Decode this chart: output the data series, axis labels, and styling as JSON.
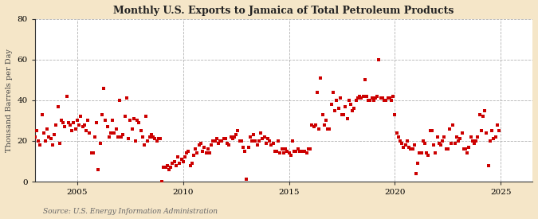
{
  "title": "Monthly U.S. Exports to Jamaica of Total Petroleum Products",
  "ylabel": "Thousand Barrels per Day",
  "source": "Source: U.S. Energy Information Administration",
  "outer_bg": "#f5e6c8",
  "plot_bg": "#ffffff",
  "marker_color": "#cc0000",
  "xlim": [
    2003.0,
    2026.5
  ],
  "ylim": [
    0,
    80
  ],
  "yticks": [
    0,
    20,
    40,
    60,
    80
  ],
  "xticks": [
    2005,
    2010,
    2015,
    2020,
    2025
  ],
  "marker_size": 7,
  "data": {
    "2003-01": 22,
    "2003-02": 25,
    "2003-03": 20,
    "2003-04": 18,
    "2003-05": 33,
    "2003-06": 24,
    "2003-07": 20,
    "2003-08": 26,
    "2003-09": 22,
    "2003-10": 21,
    "2003-11": 18,
    "2003-12": 23,
    "2004-01": 28,
    "2004-02": 37,
    "2004-03": 19,
    "2004-04": 30,
    "2004-05": 29,
    "2004-06": 27,
    "2004-07": 42,
    "2004-08": 29,
    "2004-09": 28,
    "2004-10": 25,
    "2004-11": 29,
    "2004-12": 26,
    "2005-01": 30,
    "2005-02": 28,
    "2005-03": 32,
    "2005-04": 27,
    "2005-05": 28,
    "2005-06": 25,
    "2005-07": 30,
    "2005-08": 24,
    "2005-09": 14,
    "2005-10": 14,
    "2005-11": 22,
    "2005-12": 29,
    "2006-01": 6,
    "2006-02": 19,
    "2006-03": 33,
    "2006-04": 46,
    "2006-05": 30,
    "2006-06": 27,
    "2006-07": 22,
    "2006-08": 24,
    "2006-09": 30,
    "2006-10": 24,
    "2006-11": 26,
    "2006-12": 22,
    "2007-01": 40,
    "2007-02": 22,
    "2007-03": 23,
    "2007-04": 32,
    "2007-05": 41,
    "2007-06": 21,
    "2007-07": 30,
    "2007-08": 26,
    "2007-09": 31,
    "2007-10": 20,
    "2007-11": 30,
    "2007-12": 29,
    "2008-01": 25,
    "2008-02": 22,
    "2008-03": 18,
    "2008-04": 32,
    "2008-05": 20,
    "2008-06": 22,
    "2008-07": 23,
    "2008-08": 22,
    "2008-09": 21,
    "2008-10": 20,
    "2008-11": 21,
    "2008-12": 21,
    "2009-01": 0,
    "2009-02": 7,
    "2009-03": 7,
    "2009-04": 8,
    "2009-05": 6,
    "2009-06": 7,
    "2009-07": 9,
    "2009-08": 10,
    "2009-09": 8,
    "2009-10": 12,
    "2009-11": 9,
    "2009-12": 11,
    "2010-01": 10,
    "2010-02": 12,
    "2010-03": 14,
    "2010-04": 15,
    "2010-05": 8,
    "2010-06": 9,
    "2010-07": 13,
    "2010-08": 16,
    "2010-09": 14,
    "2010-10": 18,
    "2010-11": 19,
    "2010-12": 15,
    "2011-01": 17,
    "2011-02": 14,
    "2011-03": 16,
    "2011-04": 14,
    "2011-05": 18,
    "2011-06": 20,
    "2011-07": 20,
    "2011-08": 21,
    "2011-09": 19,
    "2011-10": 20,
    "2011-11": 20,
    "2011-12": 21,
    "2012-01": 21,
    "2012-02": 19,
    "2012-03": 18,
    "2012-04": 22,
    "2012-05": 21,
    "2012-06": 22,
    "2012-07": 23,
    "2012-08": 25,
    "2012-09": 20,
    "2012-10": 20,
    "2012-11": 17,
    "2012-12": 15,
    "2013-01": 1,
    "2013-02": 17,
    "2013-03": 22,
    "2013-04": 20,
    "2013-05": 23,
    "2013-06": 20,
    "2013-07": 18,
    "2013-08": 20,
    "2013-09": 24,
    "2013-10": 21,
    "2013-11": 22,
    "2013-12": 19,
    "2014-01": 21,
    "2014-02": 20,
    "2014-03": 18,
    "2014-04": 19,
    "2014-05": 15,
    "2014-06": 15,
    "2014-07": 20,
    "2014-08": 14,
    "2014-09": 16,
    "2014-10": 14,
    "2014-11": 16,
    "2014-12": 15,
    "2015-01": 14,
    "2015-02": 13,
    "2015-03": 20,
    "2015-04": 15,
    "2015-05": 15,
    "2015-06": 16,
    "2015-07": 15,
    "2015-08": 15,
    "2015-09": 15,
    "2015-10": 15,
    "2015-11": 14,
    "2015-12": 16,
    "2016-01": 16,
    "2016-02": 28,
    "2016-03": 27,
    "2016-04": 28,
    "2016-05": 44,
    "2016-06": 26,
    "2016-07": 51,
    "2016-08": 33,
    "2016-09": 28,
    "2016-10": 30,
    "2016-11": 26,
    "2016-12": 26,
    "2017-01": 38,
    "2017-02": 44,
    "2017-03": 35,
    "2017-04": 40,
    "2017-05": 36,
    "2017-06": 41,
    "2017-07": 33,
    "2017-08": 33,
    "2017-09": 37,
    "2017-10": 31,
    "2017-11": 40,
    "2017-12": 38,
    "2018-01": 35,
    "2018-02": 36,
    "2018-03": 40,
    "2018-04": 41,
    "2018-05": 42,
    "2018-06": 41,
    "2018-07": 42,
    "2018-08": 50,
    "2018-09": 42,
    "2018-10": 40,
    "2018-11": 40,
    "2018-12": 41,
    "2019-01": 40,
    "2019-02": 41,
    "2019-03": 42,
    "2019-04": 60,
    "2019-05": 41,
    "2019-06": 41,
    "2019-07": 40,
    "2019-08": 40,
    "2019-09": 41,
    "2019-10": 41,
    "2019-11": 40,
    "2019-12": 42,
    "2020-01": 33,
    "2020-02": 24,
    "2020-03": 22,
    "2020-04": 20,
    "2020-05": 19,
    "2020-06": 17,
    "2020-07": 18,
    "2020-08": 20,
    "2020-09": 17,
    "2020-10": 16,
    "2020-11": 16,
    "2020-12": 18,
    "2021-01": 4,
    "2021-02": 9,
    "2021-03": 14,
    "2021-04": 14,
    "2021-05": 20,
    "2021-06": 19,
    "2021-07": 14,
    "2021-08": 13,
    "2021-09": 25,
    "2021-10": 25,
    "2021-11": 18,
    "2021-12": 14,
    "2022-01": 22,
    "2022-02": 19,
    "2022-03": 18,
    "2022-04": 20,
    "2022-05": 22,
    "2022-06": 16,
    "2022-07": 16,
    "2022-08": 26,
    "2022-09": 19,
    "2022-10": 28,
    "2022-11": 19,
    "2022-12": 22,
    "2023-01": 20,
    "2023-02": 21,
    "2023-03": 24,
    "2023-04": 16,
    "2023-05": 16,
    "2023-06": 14,
    "2023-07": 17,
    "2023-08": 22,
    "2023-09": 20,
    "2023-10": 19,
    "2023-11": 20,
    "2023-12": 22,
    "2024-01": 33,
    "2024-02": 25,
    "2024-03": 32,
    "2024-04": 35,
    "2024-05": 24,
    "2024-06": 8,
    "2024-07": 20,
    "2024-08": 25,
    "2024-09": 21,
    "2024-10": 22,
    "2024-11": 28,
    "2024-12": 25
  }
}
